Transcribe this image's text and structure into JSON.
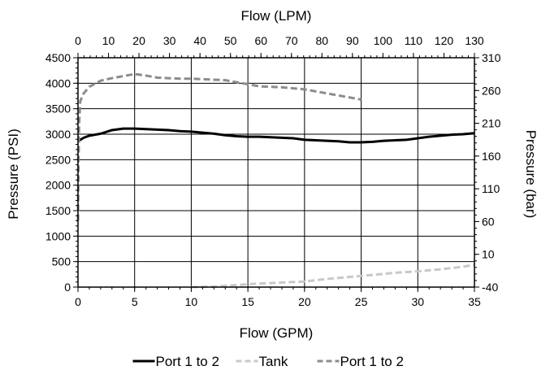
{
  "chart_data": {
    "type": "line",
    "title": "",
    "xlabel": "Flow (GPM)",
    "x2label": "Flow (LPM)",
    "ylabel": "Pressure (PSI)",
    "y2label": "Pressure (bar)",
    "xlim": [
      0,
      35
    ],
    "ylim": [
      0,
      4500
    ],
    "x2lim": [
      0,
      130
    ],
    "y2lim": [
      -40,
      310
    ],
    "grid": true,
    "legend_position": "bottom",
    "x_ticks": [
      "0",
      "5",
      "10",
      "15",
      "20",
      "25",
      "30",
      "35"
    ],
    "y_ticks": [
      "0",
      "500",
      "1000",
      "1500",
      "2000",
      "2500",
      "3000",
      "3500",
      "4000",
      "4500"
    ],
    "x2_ticks": [
      "0",
      "10",
      "20",
      "30",
      "40",
      "50",
      "60",
      "70",
      "80",
      "90",
      "100",
      "110",
      "120",
      "130"
    ],
    "y2_ticks": [
      "-40",
      "10",
      "60",
      "110",
      "160",
      "210",
      "260",
      "310"
    ],
    "series": [
      {
        "name": "Port 1 to 2",
        "color": "#000000",
        "dash": "solid",
        "width": 3,
        "x": [
          0,
          0.5,
          1,
          2,
          3,
          4,
          5,
          6,
          7,
          8,
          9,
          10,
          11,
          12,
          13,
          14,
          15,
          16,
          17,
          18,
          19,
          20,
          21,
          22,
          23,
          24,
          25,
          26,
          27,
          28,
          29,
          30,
          31,
          32,
          33,
          34,
          35
        ],
        "y": [
          2860,
          2930,
          2970,
          3010,
          3080,
          3110,
          3110,
          3100,
          3090,
          3080,
          3060,
          3050,
          3030,
          3010,
          2980,
          2960,
          2950,
          2950,
          2940,
          2930,
          2920,
          2890,
          2880,
          2870,
          2860,
          2840,
          2840,
          2850,
          2870,
          2880,
          2890,
          2920,
          2950,
          2970,
          2990,
          3000,
          3020
        ]
      },
      {
        "name": "Tank",
        "color": "#c8c8c8",
        "dash": "dashed",
        "width": 3,
        "x": [
          10,
          12,
          14,
          16,
          18,
          20,
          22,
          24,
          26,
          28,
          30,
          32,
          34,
          35
        ],
        "y": [
          0,
          10,
          40,
          70,
          90,
          110,
          160,
          200,
          240,
          280,
          310,
          350,
          400,
          440
        ]
      },
      {
        "name": "Port 1 to 2",
        "color": "#8c8c8c",
        "dash": "dashed",
        "width": 3,
        "x": [
          0,
          0.05,
          0.1,
          0.2,
          0.5,
          1,
          2,
          3,
          4,
          5,
          6,
          7,
          8,
          9,
          10,
          11,
          12,
          13,
          14,
          15,
          16,
          17,
          18,
          19,
          20,
          21,
          22,
          23,
          24,
          25
        ],
        "y": [
          1300,
          2500,
          3200,
          3650,
          3800,
          3930,
          4050,
          4100,
          4140,
          4180,
          4150,
          4110,
          4100,
          4090,
          4090,
          4080,
          4070,
          4060,
          4020,
          3980,
          3940,
          3930,
          3920,
          3900,
          3880,
          3840,
          3800,
          3760,
          3720,
          3680
        ]
      }
    ]
  }
}
